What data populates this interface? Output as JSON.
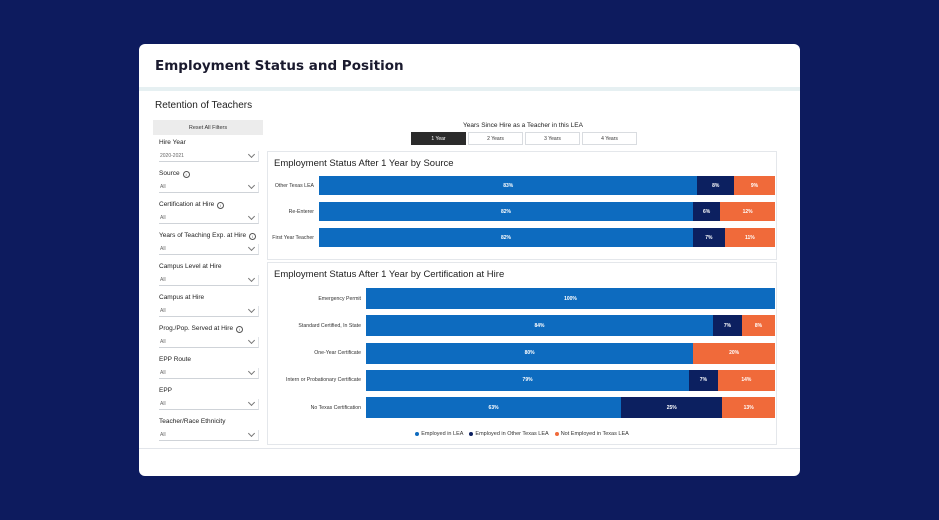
{
  "page": {
    "title": "Employment Status and Position",
    "section_title": "Retention of Teachers"
  },
  "filters": {
    "reset_label": "Reset All Filters",
    "items": [
      {
        "label": "Hire Year",
        "value": "2020-2021",
        "info": false
      },
      {
        "label": "Source",
        "value": "All",
        "info": true
      },
      {
        "label": "Certification at Hire",
        "value": "All",
        "info": true
      },
      {
        "label": "Years of Teaching Exp. at Hire",
        "value": "All",
        "info": true
      },
      {
        "label": "Campus Level at Hire",
        "value": "All",
        "info": false
      },
      {
        "label": "Campus at Hire",
        "value": "All",
        "info": false
      },
      {
        "label": "Prog./Pop. Served at Hire",
        "value": "All",
        "info": true
      },
      {
        "label": "EPP Route",
        "value": "All",
        "info": false
      },
      {
        "label": "EPP",
        "value": "All",
        "info": false
      },
      {
        "label": "Teacher/Race Ethnicity",
        "value": "All",
        "info": false
      }
    ]
  },
  "years": {
    "title": "Years Since Hire as a Teacher in this LEA",
    "tabs": [
      "1 Year",
      "2 Years",
      "3 Years",
      "4 Years"
    ],
    "selected": "1 Year"
  },
  "colors": {
    "employed_lea": "#0d6bbf",
    "employed_other": "#0c2060",
    "not_employed": "#f06a3a"
  },
  "chart_data": [
    {
      "type": "bar",
      "title": "Employment Status After 1 Year by Source",
      "categories": [
        "Other Texas LEA",
        "Re-Enterer",
        "First Year Teacher"
      ],
      "series": [
        {
          "name": "Employed in LEA",
          "values": [
            83,
            82,
            82
          ],
          "labels": [
            "83%",
            "82%",
            "82%"
          ]
        },
        {
          "name": "Employed in Other Texas LEA",
          "values": [
            8,
            6,
            7
          ],
          "labels": [
            "8%",
            "6%",
            "7%"
          ]
        },
        {
          "name": "Not Employed in Texas LEA",
          "values": [
            9,
            12,
            11
          ],
          "labels": [
            "9%",
            "12%",
            "11%"
          ]
        }
      ],
      "stacked": true,
      "orientation": "horizontal"
    },
    {
      "type": "bar",
      "title": "Employment Status After 1 Year by Certification at Hire",
      "categories": [
        "Emergency Permit",
        "Standard Certified, In State",
        "One-Year Certificate",
        "Intern or Probationary Certificate",
        "No Texas Certification"
      ],
      "series": [
        {
          "name": "Employed in LEA",
          "values": [
            100,
            84,
            80,
            79,
            63
          ],
          "labels": [
            "100%",
            "84%",
            "80%",
            "79%",
            "63%"
          ]
        },
        {
          "name": "Employed in Other Texas LEA",
          "values": [
            0,
            7,
            0,
            7,
            25
          ],
          "labels": [
            "",
            "7%",
            "",
            "7%",
            "25%"
          ]
        },
        {
          "name": "Not Employed in Texas LEA",
          "values": [
            0,
            8,
            20,
            14,
            13
          ],
          "labels": [
            "",
            "8%",
            "20%",
            "14%",
            "13%"
          ]
        }
      ],
      "stacked": true,
      "orientation": "horizontal",
      "legend": "bottom"
    }
  ],
  "legend": [
    "Employed in LEA",
    "Employed in Other Texas LEA",
    "Not Employed in Texas LEA"
  ]
}
